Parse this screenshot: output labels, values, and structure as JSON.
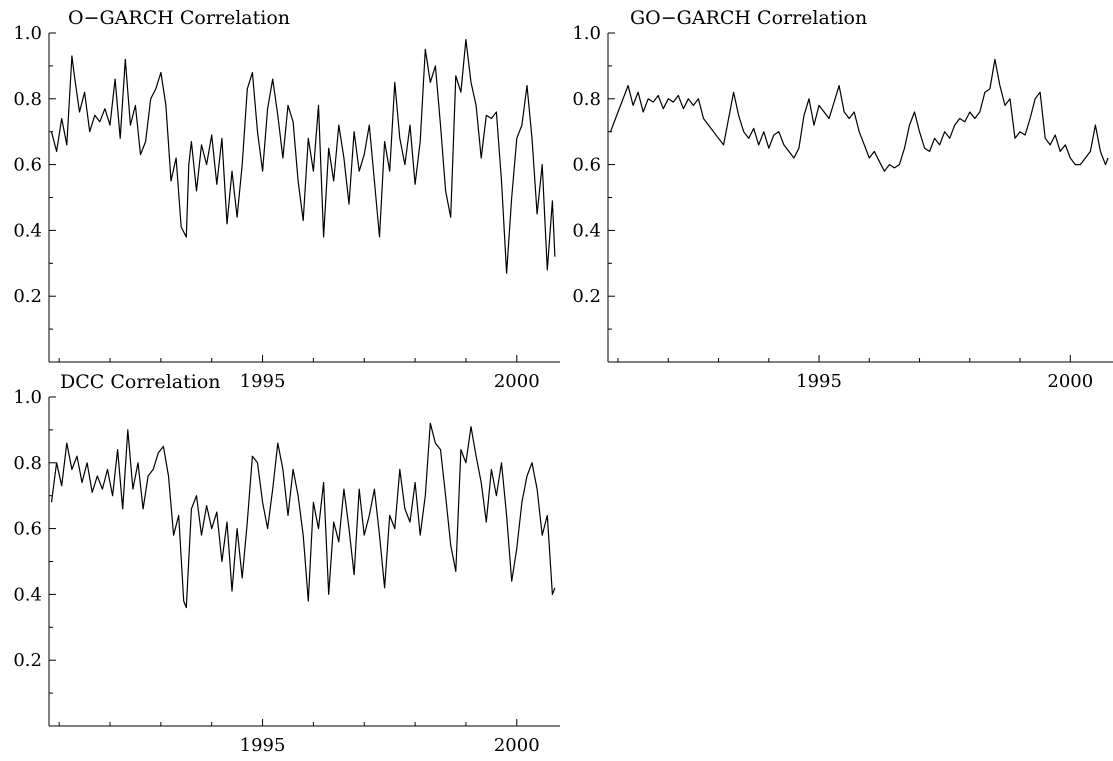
{
  "chart_data": [
    {
      "type": "line",
      "title": "O−GARCH Correlation",
      "xlabel": "",
      "ylabel": "",
      "xlim": [
        1990.8,
        2000.85
      ],
      "ylim": [
        0.0,
        1.0
      ],
      "y_ticks": [
        "0.2",
        "0.4",
        "0.6",
        "0.8",
        "1.0"
      ],
      "x_ticks": [
        "1995",
        "2000"
      ],
      "grid": false,
      "series": [
        {
          "x": [
            1990.85,
            1990.95,
            1991.05,
            1991.15,
            1991.25,
            1991.3,
            1991.4,
            1991.5,
            1991.6,
            1991.7,
            1991.8,
            1991.9,
            1992.0,
            1992.1,
            1992.2,
            1992.3,
            1992.4,
            1992.5,
            1992.6,
            1992.7,
            1992.8,
            1992.9,
            1993.0,
            1993.1,
            1993.2,
            1993.3,
            1993.4,
            1993.5,
            1993.55,
            1993.6,
            1993.7,
            1993.8,
            1993.9,
            1994.0,
            1994.1,
            1994.2,
            1994.3,
            1994.4,
            1994.5,
            1994.6,
            1994.7,
            1994.8,
            1994.9,
            1995.0,
            1995.1,
            1995.2,
            1995.3,
            1995.4,
            1995.5,
            1995.6,
            1995.7,
            1995.8,
            1995.9,
            1996.0,
            1996.1,
            1996.2,
            1996.3,
            1996.4,
            1996.5,
            1996.6,
            1996.7,
            1996.8,
            1996.9,
            1997.0,
            1997.1,
            1997.2,
            1997.3,
            1997.4,
            1997.5,
            1997.6,
            1997.7,
            1997.8,
            1997.9,
            1998.0,
            1998.1,
            1998.2,
            1998.3,
            1998.4,
            1998.5,
            1998.6,
            1998.7,
            1998.8,
            1998.9,
            1999.0,
            1999.1,
            1999.2,
            1999.3,
            1999.4,
            1999.5,
            1999.6,
            1999.7,
            1999.8,
            1999.9,
            2000.0,
            2000.1,
            2000.2,
            2000.3,
            2000.4,
            2000.5,
            2000.6,
            2000.7,
            2000.75
          ],
          "y": [
            0.7,
            0.64,
            0.74,
            0.66,
            0.93,
            0.87,
            0.76,
            0.82,
            0.7,
            0.75,
            0.73,
            0.77,
            0.72,
            0.86,
            0.68,
            0.92,
            0.72,
            0.78,
            0.63,
            0.67,
            0.8,
            0.83,
            0.88,
            0.78,
            0.55,
            0.62,
            0.41,
            0.38,
            0.6,
            0.67,
            0.52,
            0.66,
            0.6,
            0.69,
            0.54,
            0.68,
            0.42,
            0.58,
            0.44,
            0.6,
            0.83,
            0.88,
            0.7,
            0.58,
            0.77,
            0.86,
            0.75,
            0.62,
            0.78,
            0.73,
            0.55,
            0.43,
            0.68,
            0.58,
            0.78,
            0.38,
            0.65,
            0.55,
            0.72,
            0.62,
            0.48,
            0.7,
            0.58,
            0.63,
            0.72,
            0.55,
            0.38,
            0.67,
            0.58,
            0.85,
            0.68,
            0.6,
            0.72,
            0.54,
            0.67,
            0.95,
            0.85,
            0.9,
            0.72,
            0.52,
            0.44,
            0.87,
            0.82,
            0.98,
            0.85,
            0.78,
            0.62,
            0.75,
            0.74,
            0.76,
            0.55,
            0.27,
            0.5,
            0.68,
            0.72,
            0.84,
            0.68,
            0.45,
            0.6,
            0.28,
            0.49,
            0.32
          ]
        }
      ]
    },
    {
      "type": "line",
      "title": "GO−GARCH Correlation",
      "xlabel": "",
      "ylabel": "",
      "xlim": [
        1990.8,
        2000.85
      ],
      "ylim": [
        0.0,
        1.0
      ],
      "y_ticks": [
        "0.2",
        "0.4",
        "0.6",
        "0.8",
        "1.0"
      ],
      "x_ticks": [
        "1995",
        "2000"
      ],
      "grid": false,
      "series": [
        {
          "x": [
            1990.85,
            1991.0,
            1991.1,
            1991.2,
            1991.3,
            1991.4,
            1991.5,
            1991.6,
            1991.7,
            1991.8,
            1991.9,
            1992.0,
            1992.1,
            1992.2,
            1992.3,
            1992.4,
            1992.5,
            1992.6,
            1992.7,
            1992.8,
            1992.9,
            1993.0,
            1993.1,
            1993.2,
            1993.3,
            1993.4,
            1993.5,
            1993.6,
            1993.7,
            1993.8,
            1993.9,
            1994.0,
            1994.1,
            1994.2,
            1994.3,
            1994.4,
            1994.5,
            1994.6,
            1994.7,
            1994.8,
            1994.9,
            1995.0,
            1995.1,
            1995.2,
            1995.3,
            1995.4,
            1995.5,
            1995.6,
            1995.7,
            1995.8,
            1995.9,
            1996.0,
            1996.1,
            1996.2,
            1996.3,
            1996.4,
            1996.5,
            1996.6,
            1996.7,
            1996.8,
            1996.9,
            1997.0,
            1997.1,
            1997.2,
            1997.3,
            1997.4,
            1997.5,
            1997.6,
            1997.7,
            1997.8,
            1997.9,
            1998.0,
            1998.1,
            1998.2,
            1998.3,
            1998.4,
            1998.5,
            1998.6,
            1998.7,
            1998.8,
            1998.9,
            1999.0,
            1999.1,
            1999.2,
            1999.3,
            1999.4,
            1999.5,
            1999.6,
            1999.7,
            1999.8,
            1999.9,
            2000.0,
            2000.1,
            2000.2,
            2000.3,
            2000.4,
            2000.5,
            2000.6,
            2000.7,
            2000.75
          ],
          "y": [
            0.7,
            0.76,
            0.8,
            0.84,
            0.78,
            0.82,
            0.76,
            0.8,
            0.79,
            0.81,
            0.77,
            0.8,
            0.79,
            0.81,
            0.77,
            0.8,
            0.78,
            0.8,
            0.74,
            0.72,
            0.7,
            0.68,
            0.66,
            0.74,
            0.82,
            0.75,
            0.7,
            0.68,
            0.71,
            0.66,
            0.7,
            0.65,
            0.69,
            0.7,
            0.66,
            0.64,
            0.62,
            0.65,
            0.75,
            0.8,
            0.72,
            0.78,
            0.76,
            0.74,
            0.79,
            0.84,
            0.76,
            0.74,
            0.76,
            0.7,
            0.66,
            0.62,
            0.64,
            0.61,
            0.58,
            0.6,
            0.59,
            0.6,
            0.65,
            0.72,
            0.76,
            0.7,
            0.65,
            0.64,
            0.68,
            0.66,
            0.7,
            0.68,
            0.72,
            0.74,
            0.73,
            0.76,
            0.74,
            0.76,
            0.82,
            0.83,
            0.92,
            0.84,
            0.78,
            0.8,
            0.68,
            0.7,
            0.69,
            0.74,
            0.8,
            0.82,
            0.68,
            0.66,
            0.69,
            0.64,
            0.66,
            0.62,
            0.6,
            0.6,
            0.62,
            0.64,
            0.72,
            0.64,
            0.6,
            0.62
          ]
        }
      ]
    },
    {
      "type": "line",
      "title": "DCC Correlation",
      "xlabel": "",
      "ylabel": "",
      "xlim": [
        1990.8,
        2000.85
      ],
      "ylim": [
        0.0,
        1.0
      ],
      "y_ticks": [
        "0.2",
        "0.4",
        "0.6",
        "0.8",
        "1.0"
      ],
      "x_ticks": [
        "1995",
        "2000"
      ],
      "grid": false,
      "series": [
        {
          "x": [
            1990.85,
            1990.95,
            1991.05,
            1991.15,
            1991.25,
            1991.35,
            1991.45,
            1991.55,
            1991.65,
            1991.75,
            1991.85,
            1991.95,
            1992.05,
            1992.15,
            1992.25,
            1992.35,
            1992.45,
            1992.55,
            1992.65,
            1992.75,
            1992.85,
            1992.95,
            1993.05,
            1993.15,
            1993.25,
            1993.35,
            1993.45,
            1993.5,
            1993.6,
            1993.7,
            1993.8,
            1993.9,
            1994.0,
            1994.1,
            1994.2,
            1994.3,
            1994.4,
            1994.5,
            1994.6,
            1994.7,
            1994.8,
            1994.9,
            1995.0,
            1995.1,
            1995.2,
            1995.3,
            1995.4,
            1995.5,
            1995.6,
            1995.7,
            1995.8,
            1995.9,
            1996.0,
            1996.1,
            1996.2,
            1996.3,
            1996.4,
            1996.5,
            1996.6,
            1996.7,
            1996.8,
            1996.9,
            1997.0,
            1997.1,
            1997.2,
            1997.3,
            1997.4,
            1997.5,
            1997.6,
            1997.7,
            1997.8,
            1997.9,
            1998.0,
            1998.1,
            1998.2,
            1998.3,
            1998.4,
            1998.5,
            1998.6,
            1998.7,
            1998.8,
            1998.9,
            1999.0,
            1999.1,
            1999.2,
            1999.3,
            1999.4,
            1999.5,
            1999.6,
            1999.7,
            1999.8,
            1999.9,
            2000.0,
            2000.1,
            2000.2,
            2000.3,
            2000.4,
            2000.5,
            2000.6,
            2000.7,
            2000.75
          ],
          "y": [
            0.68,
            0.8,
            0.73,
            0.86,
            0.78,
            0.82,
            0.74,
            0.8,
            0.71,
            0.76,
            0.72,
            0.78,
            0.7,
            0.84,
            0.66,
            0.9,
            0.72,
            0.8,
            0.66,
            0.76,
            0.78,
            0.83,
            0.85,
            0.76,
            0.58,
            0.64,
            0.38,
            0.36,
            0.66,
            0.7,
            0.58,
            0.67,
            0.6,
            0.65,
            0.5,
            0.62,
            0.41,
            0.6,
            0.45,
            0.62,
            0.82,
            0.8,
            0.68,
            0.6,
            0.72,
            0.86,
            0.78,
            0.64,
            0.78,
            0.7,
            0.58,
            0.38,
            0.68,
            0.6,
            0.74,
            0.4,
            0.62,
            0.56,
            0.72,
            0.6,
            0.46,
            0.72,
            0.58,
            0.64,
            0.72,
            0.58,
            0.42,
            0.64,
            0.6,
            0.78,
            0.66,
            0.62,
            0.74,
            0.58,
            0.7,
            0.92,
            0.86,
            0.84,
            0.7,
            0.55,
            0.47,
            0.84,
            0.8,
            0.91,
            0.82,
            0.74,
            0.62,
            0.78,
            0.7,
            0.8,
            0.64,
            0.44,
            0.54,
            0.68,
            0.76,
            0.8,
            0.72,
            0.58,
            0.64,
            0.4,
            0.42
          ]
        }
      ]
    }
  ]
}
